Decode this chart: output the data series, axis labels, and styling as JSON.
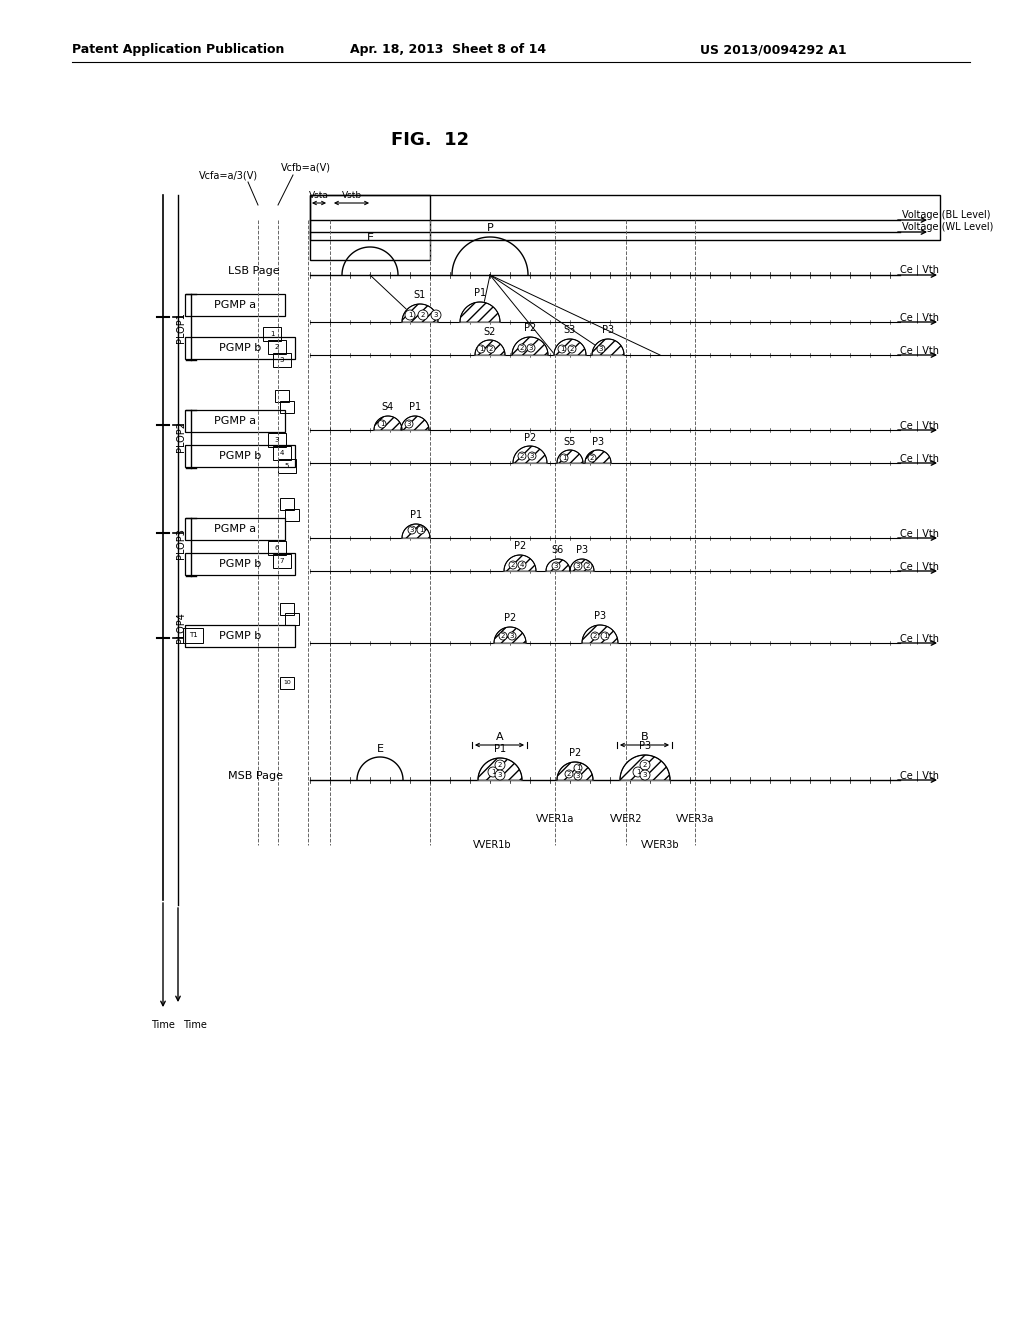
{
  "title": "FIG.  12",
  "header_left": "Patent Application Publication",
  "header_mid": "Apr. 18, 2013  Sheet 8 of 14",
  "header_right": "US 2013/0094292 A1",
  "bg_color": "#ffffff"
}
